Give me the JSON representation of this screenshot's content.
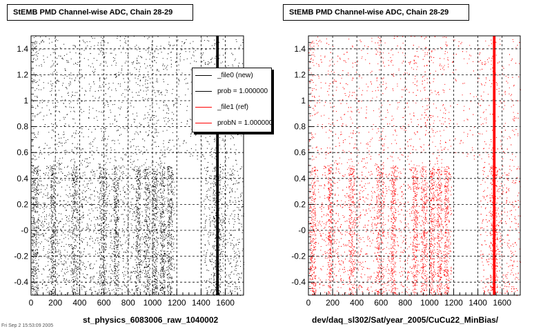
{
  "chart_data": [
    {
      "type": "scatter",
      "title": "StEMB PMD Channel-wise ADC, Chain 28-29",
      "xlabel": "st_physics_6083006_raw_1040002",
      "ylabel": "",
      "xlim": [
        0,
        1750
      ],
      "ylim": [
        -0.5,
        1.5
      ],
      "x_ticks": [
        0,
        200,
        400,
        600,
        800,
        1000,
        1200,
        1400,
        1600
      ],
      "y_ticks": [
        -0.4,
        -0.2,
        0,
        0.2,
        0.4,
        0.6,
        0.8,
        1,
        1.2,
        1.4
      ],
      "y_tick_labels": [
        "-0.4",
        "-0.2",
        "-0",
        "0.2",
        "0.4",
        "0.6",
        "0.8",
        "1",
        "1.2",
        "1.4"
      ],
      "grid": true,
      "marker_color": "#000000",
      "legend_position": "top-right",
      "series": [
        {
          "name": "_file0 (new)",
          "dense_vertical_bands_x": [
            [
              10,
              60
            ],
            [
              160,
              190
            ],
            [
              330,
              380
            ],
            [
              560,
              620
            ],
            [
              680,
              720
            ],
            [
              860,
              900
            ],
            [
              930,
              980
            ],
            [
              1000,
              1040
            ],
            [
              1060,
              1100
            ],
            [
              1120,
              1160
            ],
            [
              1500,
              1560
            ]
          ],
          "gap_x": [
            [
              1180,
              1260
            ],
            [
              1260,
              1420
            ]
          ],
          "strong_lines_x": [
            1530,
            1540
          ]
        }
      ]
    },
    {
      "type": "scatter",
      "title": "StEMB PMD Channel-wise ADC, Chain 28-29",
      "xlabel": "dev/daq_sl302/Sat/year_2005/CuCu22_MinBias/",
      "ylabel": "",
      "xlim": [
        0,
        1750
      ],
      "ylim": [
        -0.5,
        1.5
      ],
      "x_ticks": [
        0,
        200,
        400,
        600,
        800,
        1000,
        1200,
        1400,
        1600
      ],
      "y_ticks": [
        -0.4,
        -0.2,
        0,
        0.2,
        0.4,
        0.6,
        0.8,
        1,
        1.2,
        1.4
      ],
      "y_tick_labels": [
        "-0.4",
        "-0.2",
        "-0",
        "0.2",
        "0.4",
        "0.6",
        "0.8",
        "1",
        "1.2",
        "1.4"
      ],
      "grid": true,
      "marker_color": "#ff0000",
      "series": [
        {
          "name": "_file1 (ref)",
          "dense_vertical_bands_x": [
            [
              10,
              60
            ],
            [
              160,
              190
            ],
            [
              330,
              380
            ],
            [
              560,
              620
            ],
            [
              680,
              720
            ],
            [
              860,
              900
            ],
            [
              930,
              980
            ],
            [
              1000,
              1040
            ],
            [
              1060,
              1100
            ],
            [
              1120,
              1160
            ],
            [
              1500,
              1560
            ]
          ],
          "gap_x": [
            [
              1180,
              1260
            ],
            [
              1260,
              1420
            ]
          ],
          "strong_lines_x": [
            1530,
            1540
          ]
        }
      ]
    }
  ],
  "legend": {
    "items": [
      {
        "label": "_file0 (new)",
        "color": "#000000"
      },
      {
        "label": "prob = 1.000000",
        "color": "#000000"
      },
      {
        "label": "_file1 (ref)",
        "color": "#ff0000"
      },
      {
        "label": "probN = 1.000000",
        "color": "#ff0000"
      }
    ]
  },
  "footer": {
    "text": "Fri Sep  2 15:53:09 2005"
  }
}
